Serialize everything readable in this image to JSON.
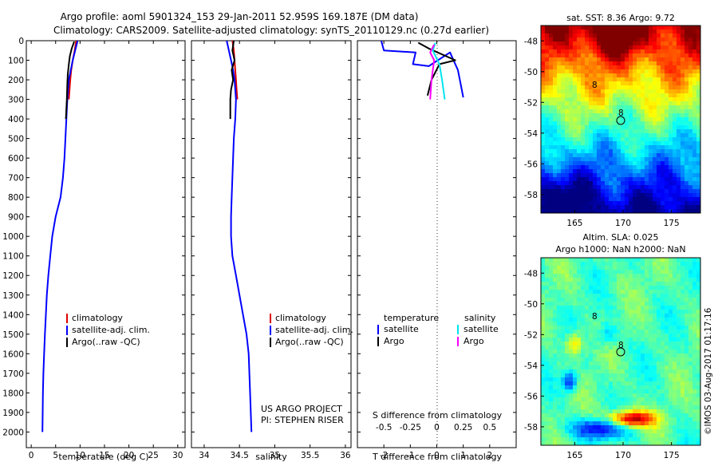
{
  "header": {
    "line1": "Argo profile: aoml 5901324_153 29-Jan-2011 52.959S 169.187E (DM data)",
    "line2": "Climatology: CARS2009. Satellite-adjusted climatology: synTS_20110129.nc (0.27d earlier)"
  },
  "colors": {
    "climatology": "#dd0000",
    "satellite": "#0000ff",
    "argo": "#000000",
    "sat_salinity": "#00e5ee",
    "argo_salinity": "#ff00ff"
  },
  "chart_data": [
    {
      "type": "line",
      "name": "temperature-profile",
      "xlabel": "temperature (deg C)",
      "xticks": [
        0,
        5,
        10,
        15,
        20,
        25,
        30
      ],
      "xlim": [
        -1,
        31.5
      ],
      "ylim": [
        2080,
        0
      ],
      "yticks": [
        0,
        100,
        200,
        300,
        400,
        500,
        600,
        700,
        800,
        900,
        1000,
        1100,
        1200,
        1300,
        1400,
        1500,
        1600,
        1700,
        1800,
        1900,
        2000
      ],
      "legend": [
        "climatology",
        "satellite-adj. clim.",
        "Argo(..raw -QC)"
      ],
      "series": [
        {
          "name": "climatology",
          "color_key": "climatology",
          "x": [
            9.2,
            8.9,
            8.5,
            8.2,
            8.0,
            7.7
          ],
          "y": [
            0,
            50,
            100,
            150,
            200,
            300
          ]
        },
        {
          "name": "satellite-adj. clim.",
          "color_key": "satellite",
          "x": [
            9.5,
            9.0,
            8.5,
            8.1,
            7.7,
            7.4,
            7.2,
            7.0,
            6.8,
            6.5,
            6.0,
            5.0,
            4.3,
            3.9,
            3.5,
            3.2,
            3.0,
            2.8,
            2.65,
            2.5,
            2.4,
            2.3
          ],
          "y": [
            0,
            50,
            100,
            150,
            200,
            300,
            400,
            500,
            600,
            700,
            800,
            900,
            1000,
            1100,
            1200,
            1300,
            1400,
            1500,
            1600,
            1700,
            1800,
            2000
          ]
        },
        {
          "name": "Argo(..raw -QC)",
          "color_key": "argo",
          "x": [
            8.8,
            8.3,
            7.9,
            7.7,
            7.5,
            7.4,
            7.3,
            7.1
          ],
          "y": [
            5,
            40,
            80,
            120,
            170,
            220,
            300,
            400
          ]
        }
      ]
    },
    {
      "type": "line",
      "name": "salinity-profile",
      "xlabel": "salinity",
      "xticks": [
        34,
        34.5,
        35,
        35.5,
        36
      ],
      "xlim": [
        33.82,
        36.08
      ],
      "ylim": [
        2080,
        0
      ],
      "legend": [
        "climatology",
        "satellite-adj. clim.",
        "Argo(..raw -QC)"
      ],
      "annotations": [
        "US ARGO PROJECT",
        "PI: STEPHEN RISER"
      ],
      "series": [
        {
          "name": "climatology",
          "color_key": "climatology",
          "x": [
            34.4,
            34.42,
            34.43,
            34.44,
            34.45,
            34.46,
            34.47
          ],
          "y": [
            0,
            50,
            100,
            150,
            200,
            250,
            300
          ]
        },
        {
          "name": "satellite-adj. clim.",
          "color_key": "satellite",
          "x": [
            34.32,
            34.35,
            34.38,
            34.41,
            34.43,
            34.45,
            34.44,
            34.42,
            34.41,
            34.4,
            34.39,
            34.38,
            34.38,
            34.4,
            34.45,
            34.5,
            34.55,
            34.6,
            34.63,
            34.65,
            34.67
          ],
          "y": [
            0,
            50,
            100,
            150,
            200,
            300,
            400,
            500,
            600,
            700,
            800,
            900,
            1000,
            1100,
            1200,
            1300,
            1400,
            1500,
            1600,
            1800,
            2000
          ]
        },
        {
          "name": "Argo(..raw -QC)",
          "color_key": "argo",
          "x": [
            34.42,
            34.4,
            34.43,
            34.39,
            34.41,
            34.38,
            34.37,
            34.37
          ],
          "y": [
            0,
            50,
            100,
            150,
            200,
            250,
            300,
            400
          ]
        }
      ]
    },
    {
      "type": "line",
      "name": "difference-profile",
      "xlabel": "T difference from climatology",
      "xlabel2": "S difference from climatology",
      "xticks": [
        -2,
        -1,
        0,
        1,
        2
      ],
      "xticks_s": [
        -0.5,
        -0.25,
        0,
        0.25,
        0.5
      ],
      "xticks_s_labels": [
        "-0.5",
        "-0.25",
        "0",
        "0.25",
        "0.5"
      ],
      "xlim": [
        -3,
        3
      ],
      "ylim": [
        2080,
        0
      ],
      "legend": {
        "temperature_title": "temperature",
        "salinity_title": "salinity",
        "items": [
          "satellite",
          "Argo",
          "satellite",
          "Argo"
        ]
      },
      "series": [
        {
          "name": "T satellite",
          "color_key": "satellite",
          "x": [
            -2.1,
            -2.0,
            -0.8,
            -0.9,
            -0.3,
            0.5,
            0.8,
            1.0
          ],
          "y": [
            0,
            50,
            60,
            120,
            130,
            60,
            150,
            290
          ]
        },
        {
          "name": "T Argo",
          "color_key": "argo",
          "x": [
            -0.7,
            -0.3,
            0.7,
            0.1,
            -0.2,
            -0.35
          ],
          "y": [
            10,
            40,
            100,
            120,
            200,
            280
          ]
        },
        {
          "name": "S satellite",
          "color_key": "sat_salinity",
          "x": [
            -0.05,
            -0.15,
            0.1,
            0.2,
            0.3
          ],
          "y": [
            10,
            50,
            120,
            200,
            300
          ]
        },
        {
          "name": "S Argo",
          "color_key": "argo_salinity",
          "x": [
            -0.1,
            -0.25,
            -0.1,
            -0.2,
            -0.25
          ],
          "y": [
            20,
            60,
            100,
            200,
            300
          ]
        }
      ]
    },
    {
      "type": "heatmap",
      "name": "sst-map",
      "title": "sat. SST: 8.36 Argo: 9.72",
      "xticks": [
        165,
        170,
        175
      ],
      "yticks": [
        -48,
        -50,
        -52,
        -54,
        -56,
        -58
      ],
      "xlim": [
        161.5,
        178
      ],
      "ylim": [
        -59.2,
        -47
      ]
    },
    {
      "type": "heatmap",
      "name": "sla-map",
      "title": "Altim. SLA: 0.025",
      "subtitle": "Argo h1000: NaN h2000: NaN",
      "xticks": [
        165,
        170,
        175
      ],
      "yticks": [
        -48,
        -50,
        -52,
        -54,
        -56,
        -58
      ],
      "xlim": [
        161.5,
        178
      ],
      "ylim": [
        -59.2,
        -47
      ]
    }
  ],
  "watermark": "©IMOS 03-Aug-2017 01:17:16"
}
